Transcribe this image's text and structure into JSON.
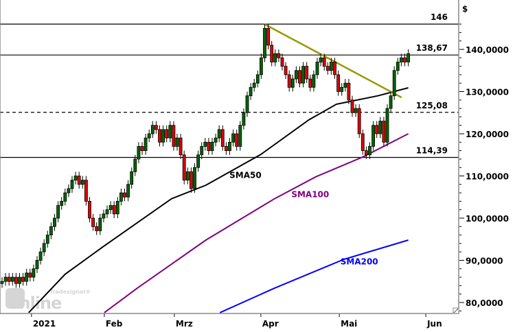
{
  "chart_data": {
    "type": "candlestick",
    "currency_label": "$",
    "y_axis": {
      "min": 78,
      "max": 147,
      "ticks": [
        80,
        90,
        100,
        110,
        120,
        130,
        140
      ],
      "tick_labels": [
        "80,0000",
        "90,0000",
        "100,0000",
        "110,0000",
        "120,0000",
        "130,0000",
        "140,0000"
      ],
      "minor_step": 2
    },
    "x_axis": {
      "labels": [
        {
          "text": "2021",
          "index": 8.4
        },
        {
          "text": "Feb",
          "index": 29.2
        },
        {
          "text": "Mrz",
          "index": 49.2
        },
        {
          "text": "Apr",
          "index": 73.9
        },
        {
          "text": "Mai",
          "index": 96.3
        },
        {
          "text": "Jun",
          "index": 121
        }
      ]
    },
    "closes": [
      85,
      86,
      85,
      86,
      84.5,
      86,
      85,
      87,
      86,
      88,
      90,
      92,
      94,
      96,
      98,
      100,
      103,
      104,
      106,
      107,
      109,
      110,
      108,
      109,
      104,
      100,
      98,
      97,
      100,
      101,
      102,
      103,
      101,
      104,
      106,
      105,
      108,
      111,
      114,
      117,
      116,
      119,
      120,
      122,
      121,
      118,
      121,
      119,
      122,
      117,
      119,
      115,
      109,
      111,
      107,
      112,
      115,
      117,
      118,
      116,
      118,
      119,
      121,
      117,
      116,
      118,
      120,
      117,
      122,
      125,
      129,
      131,
      132,
      134,
      138,
      145,
      141,
      137,
      139,
      138,
      136,
      134,
      131,
      133,
      135,
      132,
      136,
      133,
      131,
      134,
      137,
      138,
      136,
      135,
      137,
      134,
      130,
      131,
      132,
      128,
      125,
      126,
      120,
      116,
      115,
      117,
      122,
      120,
      123,
      118,
      126,
      129,
      135,
      137,
      138,
      137,
      139
    ],
    "series": [
      {
        "name": "SMA50",
        "color": "#000000",
        "points": [
          [
            7.6,
            77.6
          ],
          [
            18,
            86.7
          ],
          [
            28.8,
            93.2
          ],
          [
            48.4,
            104.6
          ],
          [
            58.2,
            107.8
          ],
          [
            73.9,
            115.1
          ],
          [
            87.6,
            123.3
          ],
          [
            95.5,
            127
          ],
          [
            107.3,
            129
          ],
          [
            116,
            130.9
          ]
        ]
      },
      {
        "name": "SMA100",
        "color": "#800080",
        "points": [
          [
            29.2,
            77.6
          ],
          [
            38.6,
            83.4
          ],
          [
            58.2,
            94.8
          ],
          [
            77.8,
            104.6
          ],
          [
            89.6,
            109.8
          ],
          [
            103.3,
            114.6
          ],
          [
            116,
            120
          ]
        ]
      },
      {
        "name": "SMA200",
        "color": "#0000ff",
        "points": [
          [
            62.2,
            77.6
          ],
          [
            77.8,
            83.4
          ],
          [
            97.5,
            90.2
          ],
          [
            116,
            94.8
          ]
        ]
      }
    ],
    "trendline": {
      "color": "#999900",
      "from": [
        74.9,
        146
      ],
      "to": [
        114.1,
        128.6
      ]
    },
    "levels": [
      {
        "value": 146,
        "label": "146",
        "style": "solid"
      },
      {
        "value": 138.67,
        "label": "138,67",
        "style": "solid"
      },
      {
        "value": 125.08,
        "label": "125,08",
        "style": "dashed"
      },
      {
        "value": 114.39,
        "label": "114,39",
        "style": "solid"
      }
    ],
    "series_labels": [
      {
        "text": "SMA50",
        "color": "#000000",
        "index": 69.5,
        "value": 109.5
      },
      {
        "text": "SMA100",
        "color": "#800080",
        "index": 88,
        "value": 105
      },
      {
        "text": "SMA200",
        "color": "#0000ff",
        "index": 102,
        "value": 89
      }
    ],
    "colors": {
      "up": "#006400",
      "down": "#e00000"
    }
  },
  "watermark": {
    "brand": "Tradesignal®",
    "word": "online"
  }
}
